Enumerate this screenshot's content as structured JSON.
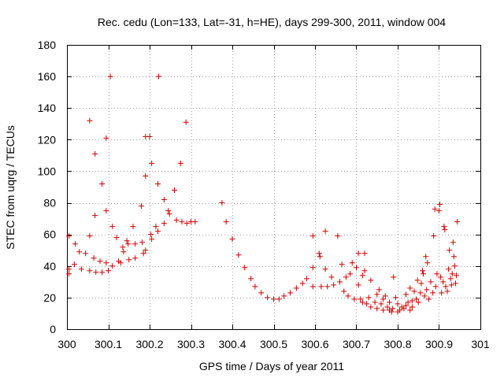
{
  "chart_data": {
    "type": "scatter",
    "title": "Rec. cedu (Lon=133, Lat=-31, h=HE), days 299-300, 2011, window 004",
    "xlabel": "GPS time / Days of year 2011",
    "ylabel": "STEC from uqrg / TECUs",
    "xlim": [
      300,
      301
    ],
    "ylim": [
      0,
      180
    ],
    "xticks": [
      "300",
      "300.1",
      "300.2",
      "300.3",
      "300.4",
      "300.5",
      "300.6",
      "300.7",
      "300.8",
      "300.9",
      "301"
    ],
    "yticks": [
      "0",
      "20",
      "40",
      "60",
      "80",
      "100",
      "120",
      "140",
      "160",
      "180"
    ],
    "grid": true,
    "marker": "+",
    "color": "#d00000",
    "series": [
      {
        "name": "STEC",
        "points": [
          [
            300.005,
            59
          ],
          [
            300.005,
            35
          ],
          [
            300.005,
            38
          ],
          [
            300.018,
            41
          ],
          [
            300.02,
            54
          ],
          [
            300.03,
            49
          ],
          [
            300.035,
            38
          ],
          [
            300.045,
            48
          ],
          [
            300.055,
            132
          ],
          [
            300.055,
            59
          ],
          [
            300.055,
            37
          ],
          [
            300.065,
            45
          ],
          [
            300.068,
            111
          ],
          [
            300.068,
            72
          ],
          [
            300.07,
            36
          ],
          [
            300.08,
            43
          ],
          [
            300.085,
            92
          ],
          [
            300.085,
            36
          ],
          [
            300.095,
            121
          ],
          [
            300.095,
            75
          ],
          [
            300.095,
            42
          ],
          [
            300.1,
            37
          ],
          [
            300.105,
            160
          ],
          [
            300.11,
            65
          ],
          [
            300.11,
            40
          ],
          [
            300.12,
            58
          ],
          [
            300.125,
            43
          ],
          [
            300.13,
            42
          ],
          [
            300.135,
            52
          ],
          [
            300.137,
            49
          ],
          [
            300.145,
            56
          ],
          [
            300.148,
            54
          ],
          [
            300.15,
            44
          ],
          [
            300.16,
            65
          ],
          [
            300.165,
            54
          ],
          [
            300.165,
            45
          ],
          [
            300.18,
            78
          ],
          [
            300.182,
            55
          ],
          [
            300.185,
            48
          ],
          [
            300.19,
            97
          ],
          [
            300.19,
            122
          ],
          [
            300.19,
            50
          ],
          [
            300.2,
            122
          ],
          [
            300.203,
            60
          ],
          [
            300.205,
            57
          ],
          [
            300.205,
            105
          ],
          [
            300.215,
            65
          ],
          [
            300.22,
            62
          ],
          [
            300.22,
            92
          ],
          [
            300.222,
            160
          ],
          [
            300.235,
            82
          ],
          [
            300.235,
            67
          ],
          [
            300.245,
            75
          ],
          [
            300.248,
            73
          ],
          [
            300.26,
            88
          ],
          [
            300.265,
            69
          ],
          [
            300.275,
            105
          ],
          [
            300.278,
            68
          ],
          [
            300.288,
            131
          ],
          [
            300.29,
            67
          ],
          [
            300.3,
            68
          ],
          [
            300.31,
            68
          ],
          [
            300.375,
            80
          ],
          [
            300.385,
            68
          ],
          [
            300.4,
            57
          ],
          [
            300.415,
            47
          ],
          [
            300.43,
            39
          ],
          [
            300.445,
            32
          ],
          [
            300.455,
            27
          ],
          [
            300.47,
            23
          ],
          [
            300.485,
            20
          ],
          [
            300.5,
            19
          ],
          [
            300.513,
            19
          ],
          [
            300.525,
            21
          ],
          [
            300.54,
            23
          ],
          [
            300.555,
            26
          ],
          [
            300.57,
            29
          ],
          [
            300.58,
            32
          ],
          [
            300.595,
            59
          ],
          [
            300.595,
            39
          ],
          [
            300.595,
            27
          ],
          [
            300.61,
            48
          ],
          [
            300.612,
            46
          ],
          [
            300.615,
            27
          ],
          [
            300.625,
            38
          ],
          [
            300.625,
            62
          ],
          [
            300.63,
            27
          ],
          [
            300.64,
            33
          ],
          [
            300.645,
            28
          ],
          [
            300.655,
            59
          ],
          [
            300.66,
            30
          ],
          [
            300.665,
            41
          ],
          [
            300.67,
            24
          ],
          [
            300.675,
            33
          ],
          [
            300.68,
            21
          ],
          [
            300.685,
            35
          ],
          [
            300.69,
            42
          ],
          [
            300.695,
            19
          ],
          [
            300.7,
            39
          ],
          [
            300.705,
            28
          ],
          [
            300.705,
            48
          ],
          [
            300.71,
            19
          ],
          [
            300.715,
            17
          ],
          [
            300.715,
            34
          ],
          [
            300.72,
            48
          ],
          [
            300.72,
            37
          ],
          [
            300.725,
            16
          ],
          [
            300.73,
            20
          ],
          [
            300.735,
            14
          ],
          [
            300.735,
            31
          ],
          [
            300.745,
            17
          ],
          [
            300.75,
            13
          ],
          [
            300.75,
            22
          ],
          [
            300.755,
            25
          ],
          [
            300.76,
            16
          ],
          [
            300.765,
            12
          ],
          [
            300.765,
            19
          ],
          [
            300.77,
            21
          ],
          [
            300.775,
            14
          ],
          [
            300.78,
            12
          ],
          [
            300.78,
            17
          ],
          [
            300.785,
            11
          ],
          [
            300.788,
            13
          ],
          [
            300.79,
            33
          ],
          [
            300.795,
            20
          ],
          [
            300.8,
            11
          ],
          [
            300.8,
            16
          ],
          [
            300.805,
            12
          ],
          [
            300.81,
            14
          ],
          [
            300.815,
            13
          ],
          [
            300.82,
            22
          ],
          [
            300.82,
            15
          ],
          [
            300.825,
            17
          ],
          [
            300.83,
            12
          ],
          [
            300.83,
            26
          ],
          [
            300.835,
            18
          ],
          [
            300.835,
            14
          ],
          [
            300.84,
            24
          ],
          [
            300.845,
            19
          ],
          [
            300.848,
            31
          ],
          [
            300.85,
            17
          ],
          [
            300.855,
            23
          ],
          [
            300.857,
            29
          ],
          [
            300.86,
            37
          ],
          [
            300.862,
            35
          ],
          [
            300.865,
            21
          ],
          [
            300.868,
            46
          ],
          [
            300.87,
            25
          ],
          [
            300.872,
            42
          ],
          [
            300.875,
            19
          ],
          [
            300.88,
            30
          ],
          [
            300.885,
            23
          ],
          [
            300.887,
            59
          ],
          [
            300.89,
            76
          ],
          [
            300.892,
            27
          ],
          [
            300.895,
            35
          ],
          [
            300.9,
            75
          ],
          [
            300.902,
            79
          ],
          [
            300.904,
            33
          ],
          [
            300.906,
            23
          ],
          [
            300.91,
            30
          ],
          [
            300.912,
            65
          ],
          [
            300.914,
            63
          ],
          [
            300.916,
            27
          ],
          [
            300.92,
            24
          ],
          [
            300.923,
            38
          ],
          [
            300.925,
            50
          ],
          [
            300.928,
            32
          ],
          [
            300.93,
            28
          ],
          [
            300.932,
            35
          ],
          [
            300.934,
            55
          ],
          [
            300.936,
            46
          ],
          [
            300.938,
            40
          ],
          [
            300.94,
            29
          ],
          [
            300.942,
            34
          ],
          [
            300.944,
            68
          ]
        ]
      }
    ]
  }
}
